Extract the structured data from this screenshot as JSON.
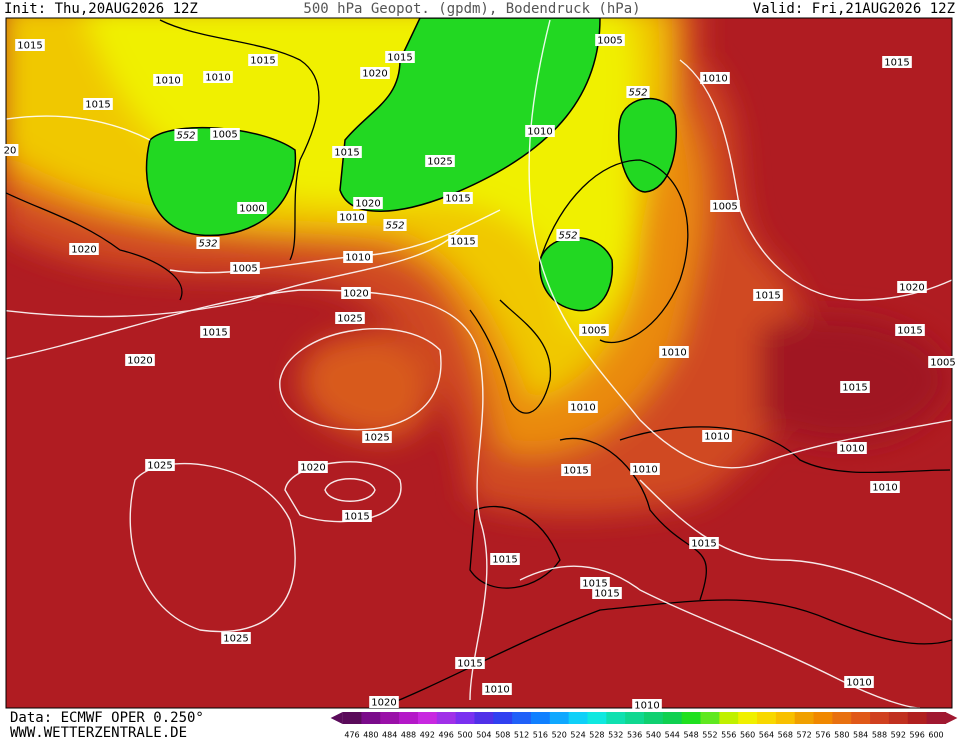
{
  "header": {
    "init": "Init: Thu,20AUG2026 12Z",
    "title": "500 hPa Geopot. (gpdm), Bodendruck (hPa)",
    "valid": "Valid: Fri,21AUG2026 12Z"
  },
  "footer": {
    "source": "Data: ECMWF OPER 0.250°",
    "url": "WWW.WETTERZENTRALE.DE"
  },
  "isobar_labels": [
    "1015",
    "1015",
    "1010",
    "1010",
    "1020",
    "1015",
    "1005",
    "1010",
    "1015",
    "1015",
    "1005",
    "552",
    "552",
    "1010",
    "1015",
    "1025",
    "1000",
    "1020",
    "1010",
    "552",
    "1015",
    "1005",
    "532",
    "552",
    "1020",
    "1005",
    "1010",
    "1015",
    "1015",
    "1020",
    "1020",
    "1025",
    "1015",
    "1005",
    "1010",
    "1015",
    "1005",
    "1020",
    "1015",
    "1010",
    "1025",
    "1010",
    "1010",
    "1020",
    "1025",
    "1015",
    "1010",
    "1010",
    "1015",
    "1015",
    "1015",
    "1015",
    "1015",
    "1025",
    "1015",
    "1010",
    "1010",
    "1020",
    "1010",
    "20"
  ],
  "colorbar": {
    "ticks": [
      476,
      480,
      484,
      488,
      492,
      496,
      500,
      504,
      508,
      512,
      516,
      520,
      524,
      528,
      532,
      536,
      540,
      544,
      548,
      552,
      556,
      560,
      564,
      568,
      572,
      576,
      580,
      584,
      588,
      592,
      596,
      600
    ],
    "colors": [
      "#5a0a5a",
      "#7a0a8a",
      "#9a10a8",
      "#b418c8",
      "#c828e0",
      "#a030e8",
      "#7a30f0",
      "#5030e8",
      "#3040f0",
      "#2060f8",
      "#1080ff",
      "#10a8ff",
      "#10d0f8",
      "#10e8e0",
      "#10e0b0",
      "#10d890",
      "#10d070",
      "#10d050",
      "#20e020",
      "#60e820",
      "#c0f000",
      "#f0f000",
      "#f8d800",
      "#f8c000",
      "#f0a000",
      "#f08800",
      "#e87010",
      "#e05818",
      "#d04020",
      "#c03020",
      "#b02020",
      "#a01830"
    ]
  }
}
